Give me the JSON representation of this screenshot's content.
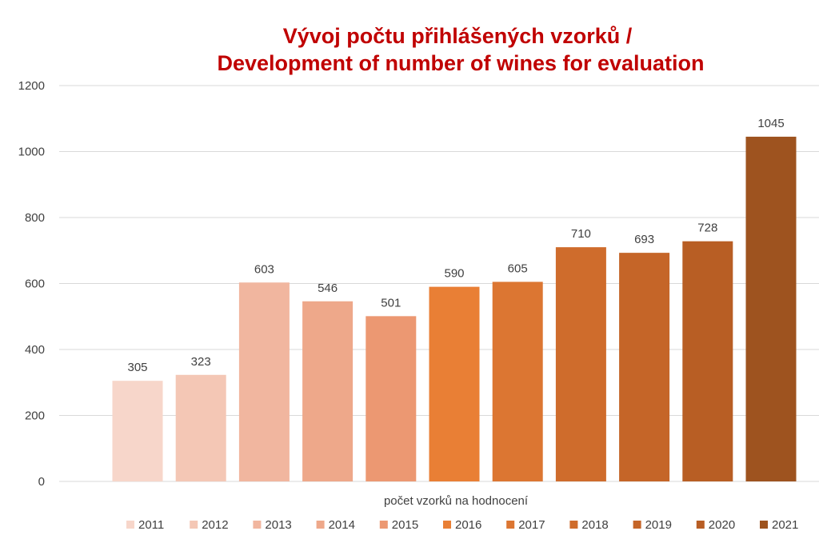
{
  "chart_data": {
    "type": "bar",
    "title": [
      "Vývoj počtu přihlášených vzorků /",
      "Development of number of wines for evaluation"
    ],
    "xlabel": "počet vzorků na hodnocení",
    "ylabel": "",
    "ylim": [
      0,
      1200
    ],
    "yticks": [
      "0",
      "200",
      "400",
      "600",
      "800",
      "1000",
      "1200"
    ],
    "grid": true,
    "legend_position": "bottom",
    "series": [
      {
        "name": "2011",
        "value": 305,
        "color": "#f7d6ca"
      },
      {
        "name": "2012",
        "value": 323,
        "color": "#f4c7b5"
      },
      {
        "name": "2013",
        "value": 603,
        "color": "#f1b69f"
      },
      {
        "name": "2014",
        "value": 546,
        "color": "#eea88a"
      },
      {
        "name": "2015",
        "value": 501,
        "color": "#ec9872"
      },
      {
        "name": "2016",
        "value": 590,
        "color": "#e97f35"
      },
      {
        "name": "2017",
        "value": 605,
        "color": "#dc7632"
      },
      {
        "name": "2018",
        "value": 710,
        "color": "#cf6c2c"
      },
      {
        "name": "2019",
        "value": 693,
        "color": "#c56528"
      },
      {
        "name": "2020",
        "value": 728,
        "color": "#b85e24"
      },
      {
        "name": "2021",
        "value": 1045,
        "color": "#9e531f"
      }
    ]
  }
}
